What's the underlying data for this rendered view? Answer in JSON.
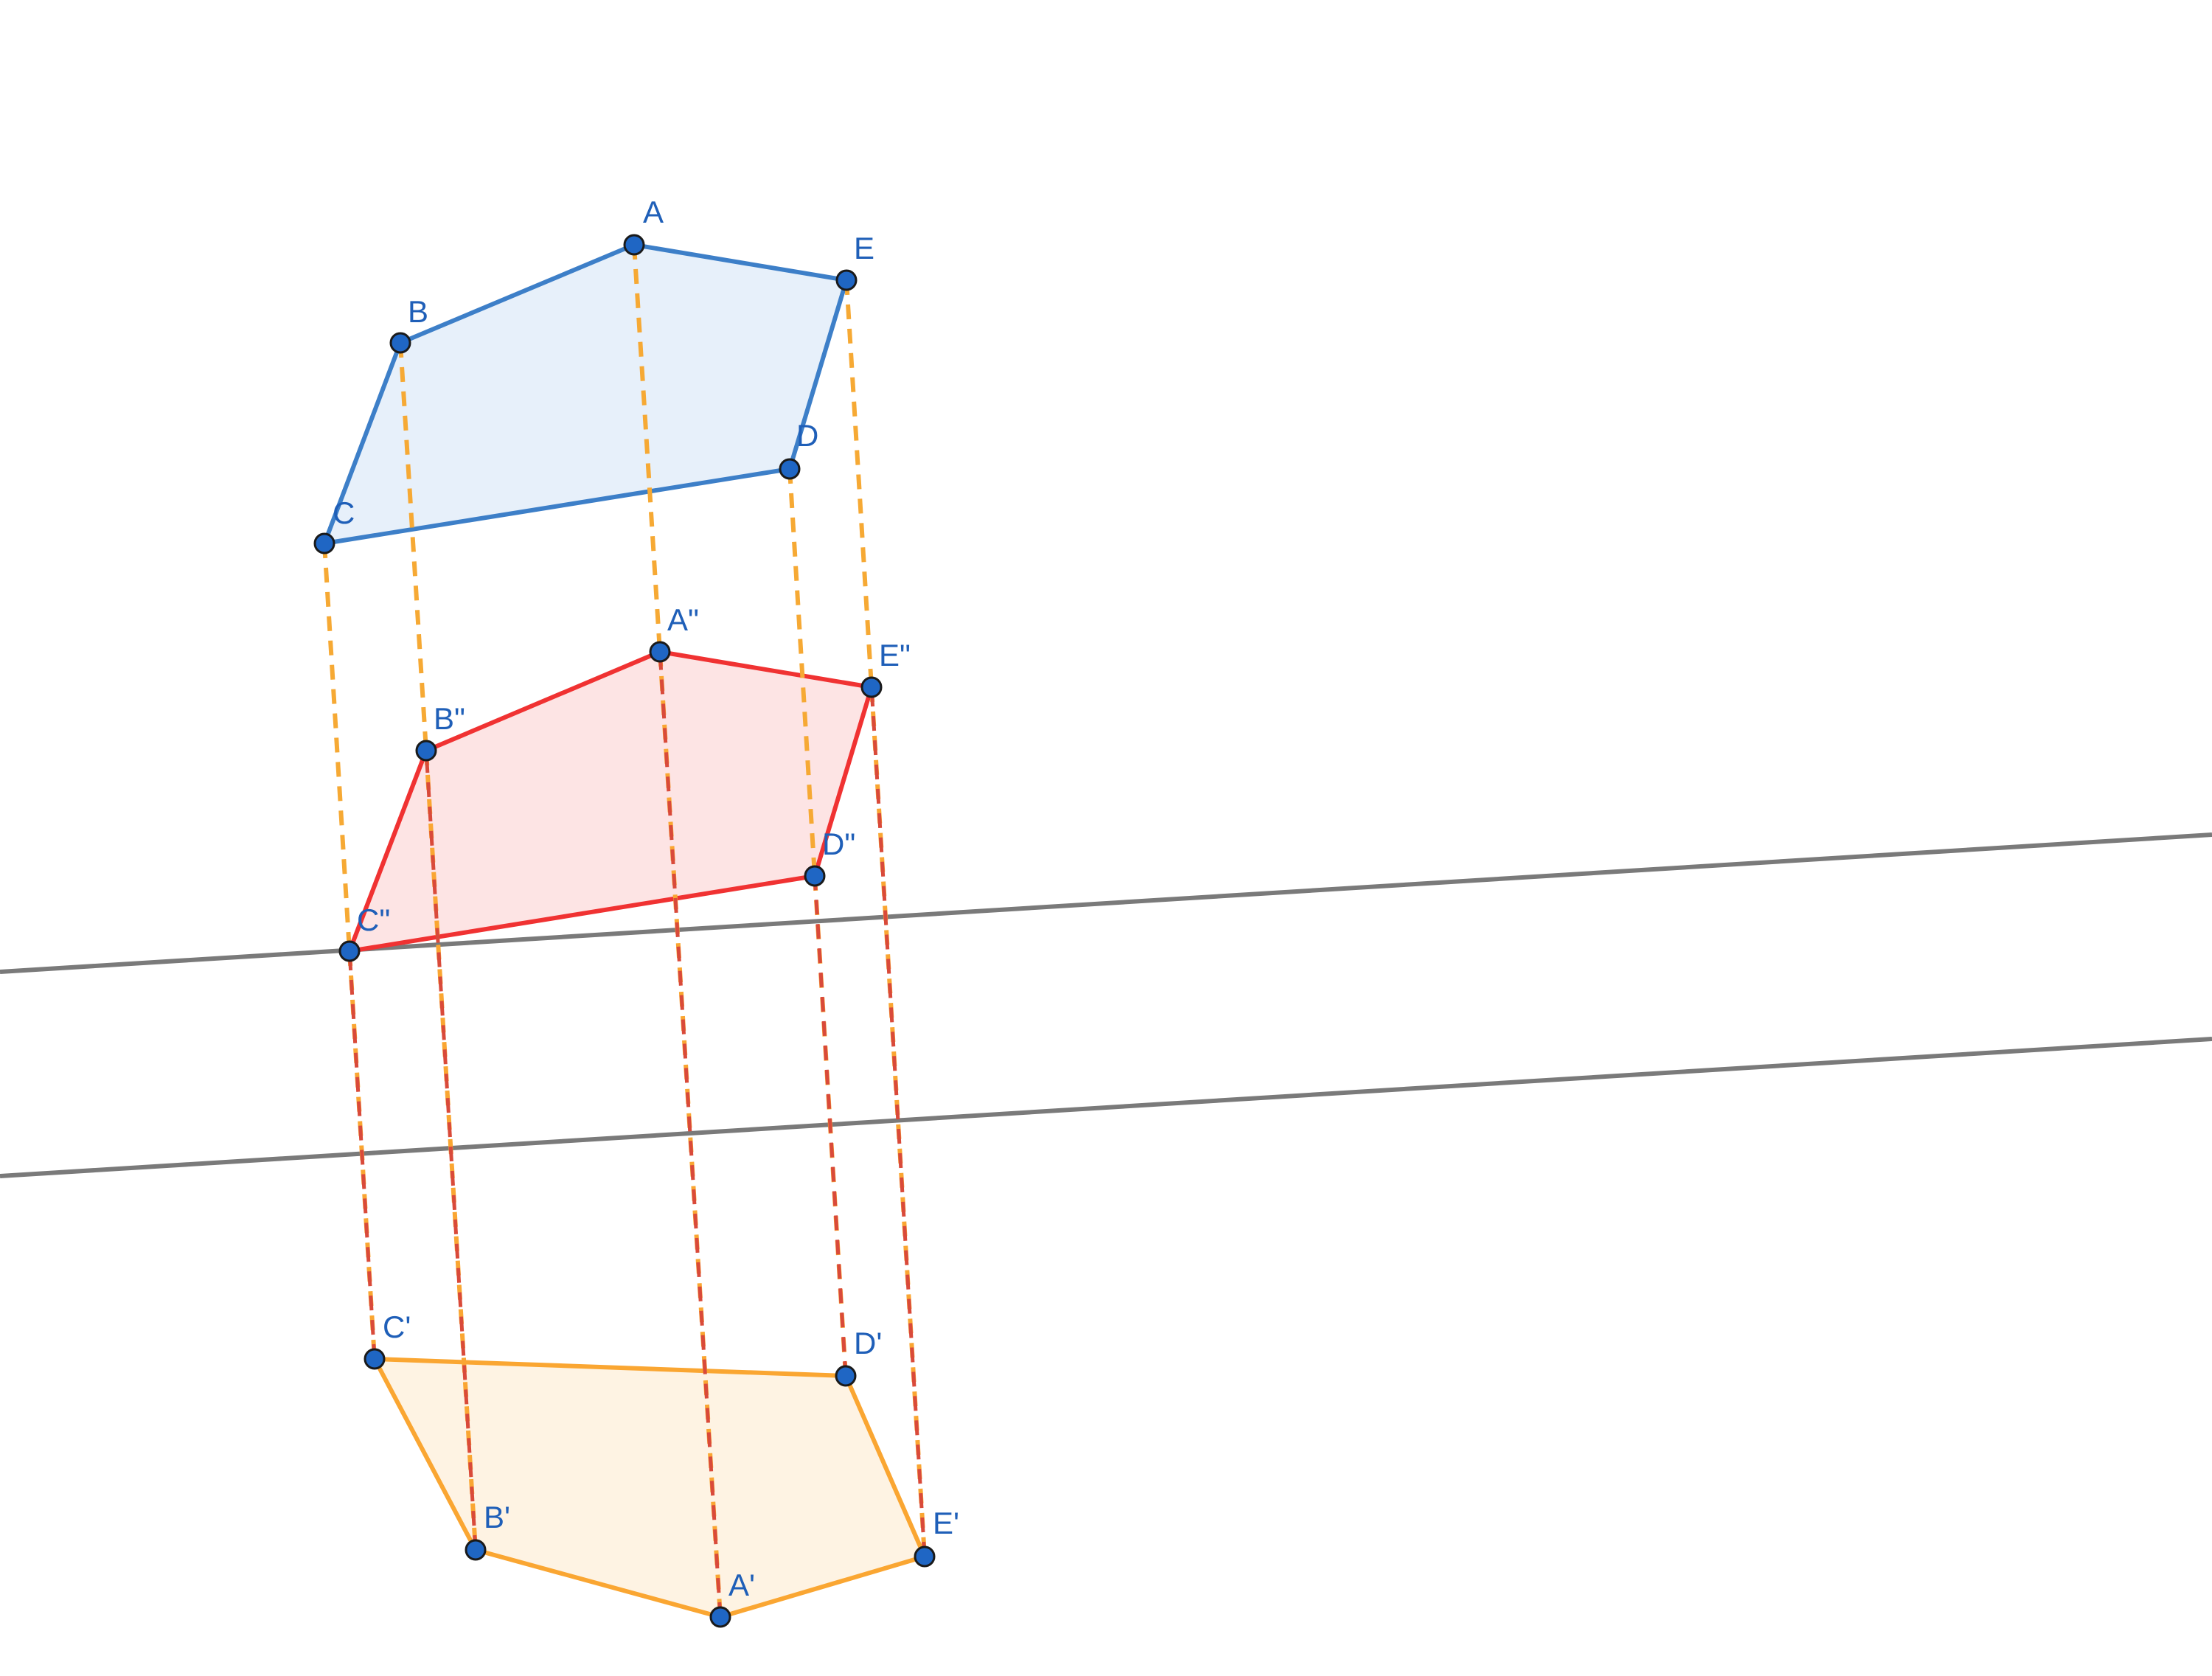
{
  "colors": {
    "original": "#3d7fc8",
    "original_fill": "#e7f0fa",
    "intermediate": "#f03232",
    "intermediate_fill": "#fde4e4",
    "image": "#faa632",
    "image_fill": "#fef3e3",
    "guide": "#f6a934",
    "arrow": "#d94a3a",
    "mirror_line": "#7a7a7a",
    "point": "#1f66c4",
    "label": "#1f5fb8"
  },
  "points": {
    "A": "A",
    "B": "B",
    "C": "C",
    "D": "D",
    "E": "E",
    "A2": "A\"",
    "B2": "B\"",
    "C2": "C\"",
    "D2": "D\"",
    "E2": "E\"",
    "A1": "A'",
    "B1": "B'",
    "C1": "C'",
    "D1": "D'",
    "E1": "E'"
  }
}
